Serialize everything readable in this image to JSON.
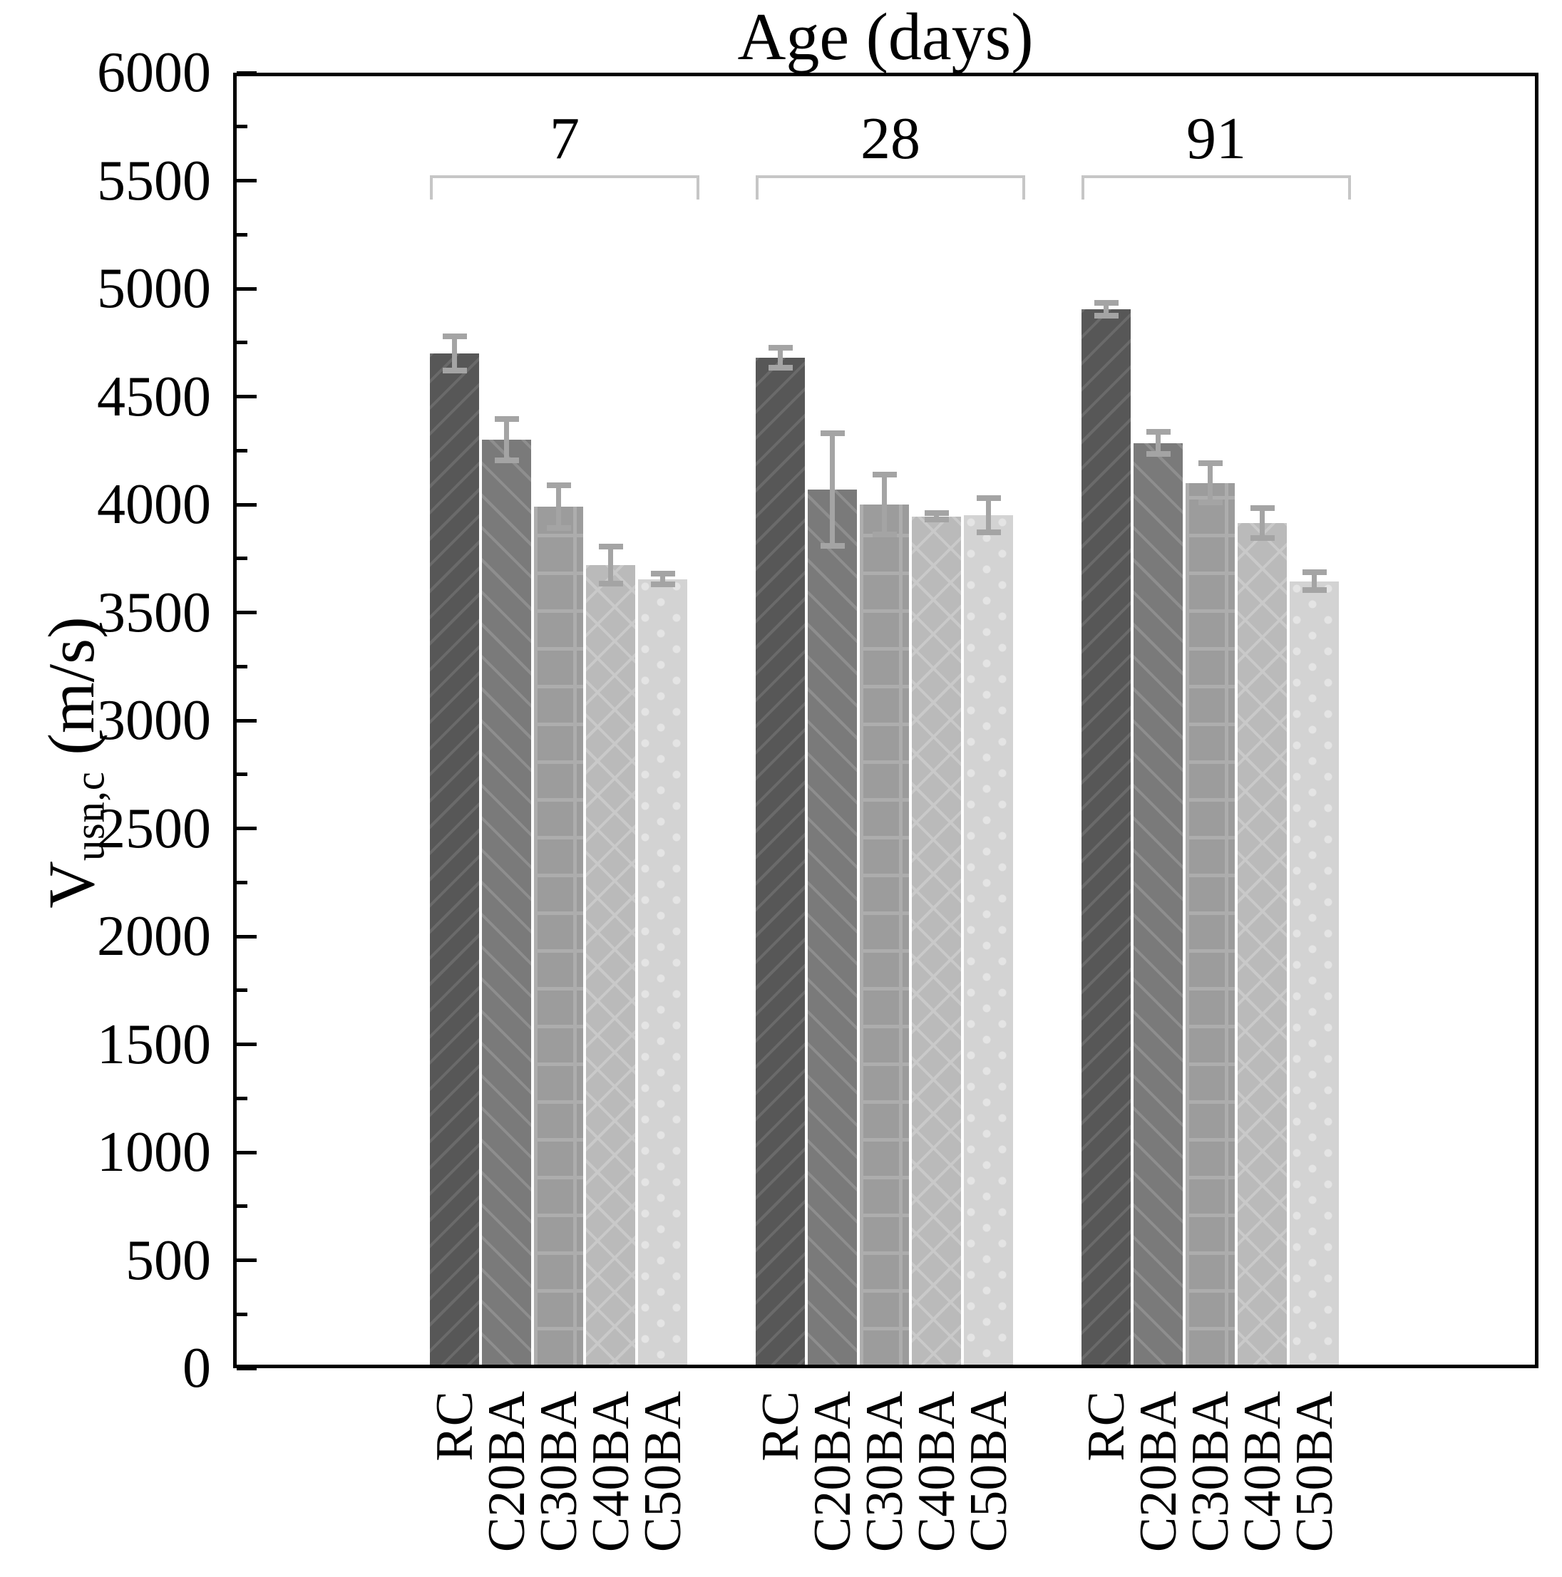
{
  "title": "Age (days)",
  "y_axis": {
    "label_main": "V",
    "label_sub": "usn,c",
    "label_unit": " (m/s)",
    "tick_labels": [
      "0",
      "500",
      "1000",
      "1500",
      "2000",
      "2500",
      "3000",
      "3500",
      "4000",
      "4500",
      "5000",
      "5500",
      "6000"
    ]
  },
  "chart_data": {
    "type": "bar",
    "title": "Age (days)",
    "ylabel": "V_usn,c (m/s)",
    "ylim": [
      0,
      6000
    ],
    "y_major_tick": 500,
    "y_minor_tick": 250,
    "grid": false,
    "legend": "none",
    "categories": [
      "RC",
      "C20BA",
      "C30BA",
      "C40BA",
      "C50BA"
    ],
    "group_labels": [
      "7",
      "28",
      "91"
    ],
    "series_by_group": [
      {
        "age": "7",
        "values": [
          4700,
          4300,
          3990,
          3720,
          3655
        ],
        "errors": [
          80,
          95,
          100,
          85,
          25
        ]
      },
      {
        "age": "28",
        "values": [
          4680,
          4070,
          4000,
          3945,
          3950
        ],
        "errors": [
          45,
          260,
          140,
          15,
          80
        ]
      },
      {
        "age": "91",
        "values": [
          4905,
          4285,
          4100,
          3915,
          3645
        ],
        "errors": [
          30,
          50,
          90,
          70,
          40
        ]
      }
    ],
    "bar_styles": [
      {
        "category": "RC",
        "fill": "#575757",
        "hatch": "diagonal-up",
        "hatch_color": "#6a6a6a"
      },
      {
        "category": "C20BA",
        "fill": "#7a7a7a",
        "hatch": "diagonal-down",
        "hatch_color": "#8e8e8e"
      },
      {
        "category": "C30BA",
        "fill": "#9c9c9c",
        "hatch": "grid",
        "hatch_color": "#adadad"
      },
      {
        "category": "C40BA",
        "fill": "#bababa",
        "hatch": "cross-diagonal",
        "hatch_color": "#c9c9c9"
      },
      {
        "category": "C50BA",
        "fill": "#d3d3d3",
        "hatch": "dots",
        "hatch_color": "#e4e4e4"
      }
    ],
    "error_bar_color": "#a4a4a4",
    "bracket_color": "#c6c6c6",
    "axis_color": "#000000"
  }
}
